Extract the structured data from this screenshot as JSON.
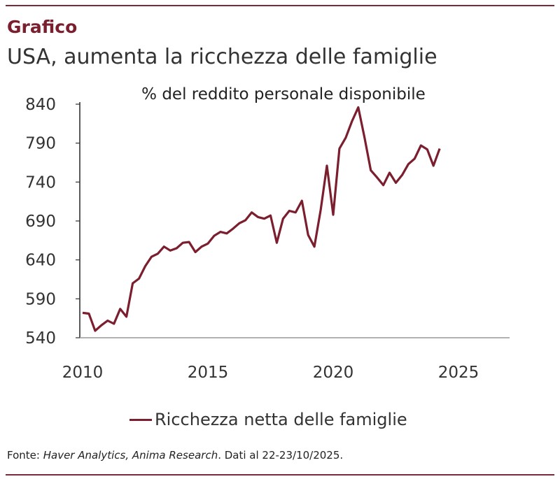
{
  "header": {
    "kicker": "Grafico",
    "title": "USA, aumenta la ricchezza delle famiglie"
  },
  "colors": {
    "accent": "#7b1e2e",
    "rule": "#7a2a3a"
  },
  "chart_data": {
    "type": "line",
    "title": "",
    "subtitle": "% del reddito personale disponibile",
    "xlabel": "",
    "ylabel": "",
    "xlim": [
      2010,
      2027
    ],
    "ylim": [
      540,
      840
    ],
    "x_ticks": [
      2010,
      2015,
      2020,
      2025
    ],
    "y_ticks": [
      540,
      590,
      640,
      690,
      740,
      790,
      840
    ],
    "grid": false,
    "legend_placement": "bottom",
    "series": [
      {
        "name": "Ricchezza netta delle famiglie",
        "color": "#7b1e2e",
        "x": [
          2010.0,
          2010.25,
          2010.5,
          2010.75,
          2011.0,
          2011.25,
          2011.5,
          2011.75,
          2012.0,
          2012.25,
          2012.5,
          2012.75,
          2013.0,
          2013.25,
          2013.5,
          2013.75,
          2014.0,
          2014.25,
          2014.5,
          2014.75,
          2015.0,
          2015.25,
          2015.5,
          2015.75,
          2016.0,
          2016.25,
          2016.5,
          2016.75,
          2017.0,
          2017.25,
          2017.5,
          2017.75,
          2018.0,
          2018.25,
          2018.5,
          2018.75,
          2019.0,
          2019.25,
          2019.5,
          2019.75,
          2020.0,
          2020.25,
          2020.5,
          2020.75,
          2021.0,
          2021.25,
          2021.5,
          2021.75,
          2022.0,
          2022.25,
          2022.5,
          2022.75,
          2023.0,
          2023.25,
          2023.5,
          2023.75,
          2024.0,
          2024.25
        ],
        "values": [
          572,
          571,
          549,
          556,
          562,
          558,
          577,
          567,
          610,
          616,
          632,
          644,
          648,
          657,
          652,
          655,
          662,
          663,
          650,
          657,
          661,
          671,
          676,
          674,
          680,
          687,
          691,
          701,
          695,
          693,
          697,
          662,
          693,
          703,
          701,
          716,
          672,
          657,
          704,
          761,
          698,
          783,
          797,
          818,
          836,
          797,
          755,
          746,
          736,
          752,
          739,
          749,
          763,
          770,
          787,
          782,
          761,
          783
        ]
      }
    ]
  },
  "footer": {
    "prefix": "Fonte: ",
    "sources": "Haver Analytics, Anima Research",
    "suffix": ". Dati al 22-23/10/2025."
  }
}
